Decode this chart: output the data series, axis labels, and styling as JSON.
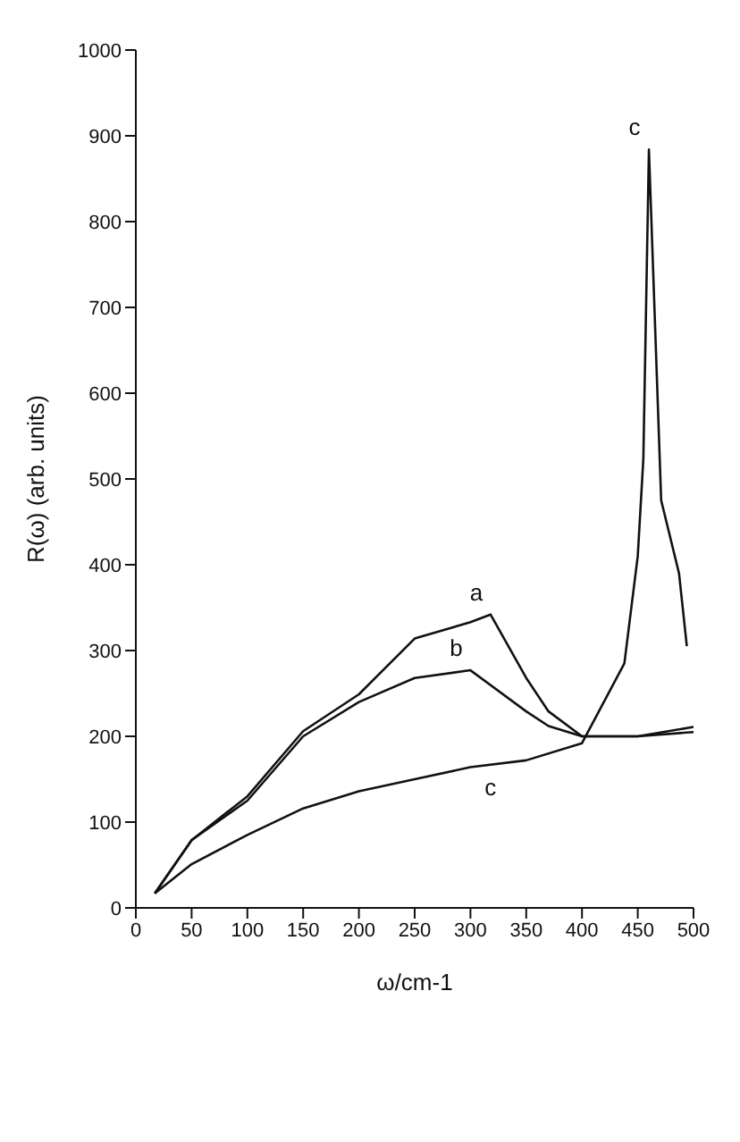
{
  "chart_data": {
    "type": "line",
    "xlabel": "ω/cm-1",
    "ylabel": "R(ω) (arb. units)",
    "xlim": [
      0,
      500
    ],
    "xticks": [
      0,
      50,
      100,
      150,
      200,
      250,
      300,
      350,
      400,
      450,
      500
    ],
    "ylim": [
      0,
      1000
    ],
    "yticks": [
      0,
      100,
      200,
      300,
      400,
      500,
      600,
      700,
      800,
      900,
      1000
    ],
    "grid": false,
    "legend": false,
    "marker": "none",
    "line_style": "solid",
    "series": [
      {
        "name": "a",
        "color": "#111111",
        "x": [
          17,
          50,
          100,
          150,
          200,
          250,
          300,
          318,
          350,
          370,
          400,
          450,
          500
        ],
        "values": [
          17,
          79,
          130,
          206,
          249,
          314,
          333,
          342,
          268,
          229,
          200,
          200,
          211
        ]
      },
      {
        "name": "b",
        "color": "#111111",
        "x": [
          17,
          50,
          100,
          150,
          200,
          250,
          300,
          350,
          370,
          400,
          450,
          500
        ],
        "values": [
          17,
          79,
          125,
          200,
          240,
          268,
          277,
          229,
          212,
          200,
          200,
          205
        ]
      },
      {
        "name": "c",
        "color": "#111111",
        "x": [
          17,
          50,
          100,
          150,
          200,
          250,
          300,
          350,
          400,
          438,
          450,
          455,
          460,
          471,
          487,
          494
        ],
        "values": [
          17,
          51,
          85,
          116,
          136,
          150,
          164,
          172,
          192,
          285,
          410,
          523,
          884,
          475,
          390,
          305
        ]
      }
    ],
    "annotations": [
      {
        "text": "c",
        "x": 318,
        "y": 167
      }
    ]
  }
}
